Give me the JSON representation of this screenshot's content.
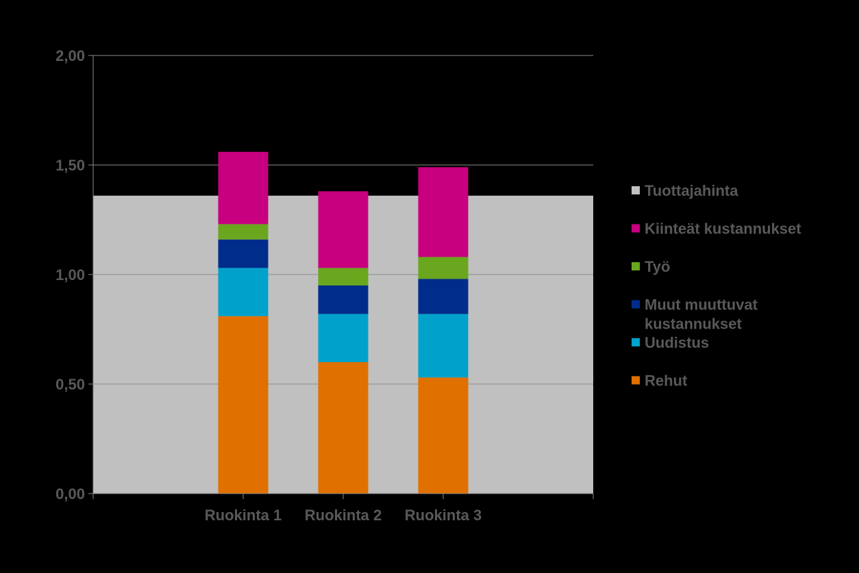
{
  "chart_data": {
    "type": "bar",
    "stacked": true,
    "categories": [
      "Ruokinta 1",
      "Ruokinta 2",
      "Ruokinta 3"
    ],
    "ylim": [
      0,
      2
    ],
    "yticks": [
      "0,00",
      "0,50",
      "1,00",
      "1,50",
      "2,00"
    ],
    "ytick_values": [
      0,
      0.5,
      1.0,
      1.5,
      2.0
    ],
    "grid": true,
    "legend_position": "right",
    "reference_area": {
      "name": "Tuottajahinta",
      "value": 1.36,
      "color": "#C0C0C0"
    },
    "series": [
      {
        "name": "Rehut",
        "color": "#E07000",
        "values": [
          0.81,
          0.6,
          0.53
        ]
      },
      {
        "name": "Uudistus",
        "color": "#00A2CC",
        "values": [
          0.22,
          0.22,
          0.29
        ]
      },
      {
        "name": "Muut muuttuvat kustannukset",
        "color": "#002D8C",
        "values": [
          0.13,
          0.13,
          0.16
        ]
      },
      {
        "name": "Työ",
        "color": "#6AA61E",
        "values": [
          0.07,
          0.08,
          0.1
        ]
      },
      {
        "name": "Kiinteät kustannukset",
        "color": "#C8007F",
        "values": [
          0.33,
          0.35,
          0.41
        ]
      }
    ],
    "legend": [
      {
        "label": "Tuottajahinta",
        "lines": [
          "Tuottajahinta"
        ],
        "color": "#C0C0C0"
      },
      {
        "label": "Kiinteät kustannukset",
        "lines": [
          "Kiinteät kustannukset"
        ],
        "color": "#C8007F"
      },
      {
        "label": "Työ",
        "lines": [
          "Työ"
        ],
        "color": "#6AA61E"
      },
      {
        "label": "Muut muuttuvat kustannukset",
        "lines": [
          "Muut muuttuvat",
          "kustannukset"
        ],
        "color": "#002D8C"
      },
      {
        "label": "Uudistus",
        "lines": [
          "Uudistus"
        ],
        "color": "#00A2CC"
      },
      {
        "label": "Rehut",
        "lines": [
          "Rehut"
        ],
        "color": "#E07000"
      }
    ]
  }
}
